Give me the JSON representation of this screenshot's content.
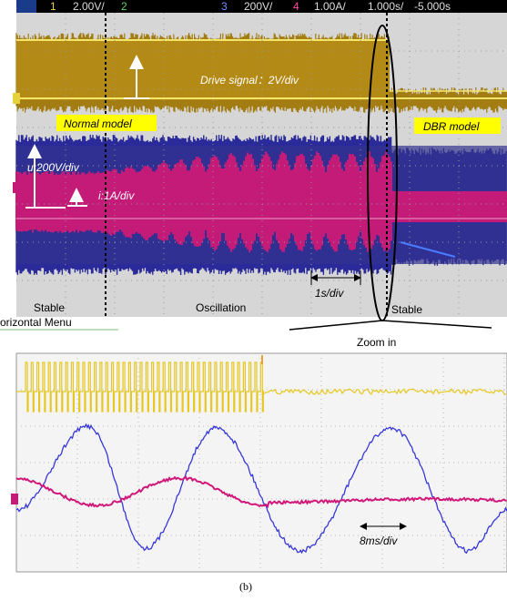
{
  "status_bar": {
    "ch1": "1",
    "ch1_scale": "2.00V/",
    "ch2": "2",
    "ch3": "3",
    "ch3_scale": "200V/",
    "ch4": "4",
    "ch4_scale": "1.00A/",
    "time_scale": "1.000s/",
    "delay": "-5.000s"
  },
  "upper_scope": {
    "drive_label": "Drive signal：2V/div",
    "normal_label": "Normal model",
    "dbr_label": "DBR model",
    "u_label": "u:200V/div",
    "i_label": "i:1A/div",
    "stable_left": "Stable",
    "oscillation": "Oscillation",
    "time_div": "1s/div",
    "stable_right": "Stable"
  },
  "menu_label": "orizontal Menu",
  "zoom_label": "Zoom in",
  "lower_scope": {
    "time_div": "8ms/div"
  },
  "caption": "(b)"
}
